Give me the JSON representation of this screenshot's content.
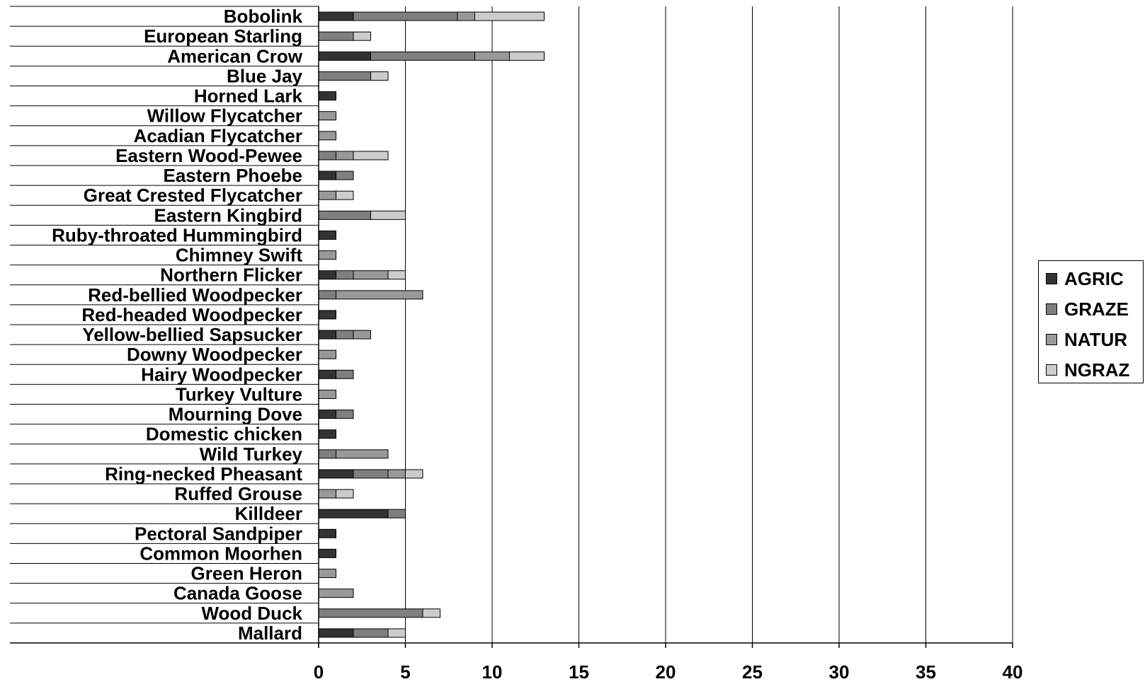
{
  "chart_data": {
    "type": "bar",
    "orientation": "horizontal",
    "stacked": true,
    "categories": [
      "Bobolink",
      "European Starling",
      "American Crow",
      "Blue Jay",
      "Horned Lark",
      "Willow Flycatcher",
      "Acadian Flycatcher",
      "Eastern Wood-Pewee",
      "Eastern Phoebe",
      "Great Crested Flycatcher",
      "Eastern Kingbird",
      "Ruby-throated Hummingbird",
      "Chimney Swift",
      "Northern Flicker",
      "Red-bellied Woodpecker",
      "Red-headed Woodpecker",
      "Yellow-bellied Sapsucker",
      "Downy Woodpecker",
      "Hairy Woodpecker",
      "Turkey Vulture",
      "Mourning Dove",
      "Domestic chicken",
      "Wild Turkey",
      "Ring-necked Pheasant",
      "Ruffed Grouse",
      "Killdeer",
      "Pectoral Sandpiper",
      "Common Moorhen",
      "Green Heron",
      "Canada Goose",
      "Wood Duck",
      "Mallard"
    ],
    "series": [
      {
        "name": "AGRIC",
        "color": "#333333",
        "values": [
          2,
          0,
          3,
          0,
          1,
          0,
          0,
          0,
          1,
          0,
          0,
          1,
          0,
          1,
          0,
          1,
          1,
          0,
          1,
          0,
          1,
          1,
          0,
          2,
          0,
          4,
          1,
          1,
          0,
          0,
          0,
          2
        ]
      },
      {
        "name": "GRAZE",
        "color": "#7f7f7f",
        "values": [
          6,
          2,
          6,
          3,
          0,
          0,
          0,
          1,
          1,
          0,
          3,
          0,
          0,
          1,
          1,
          0,
          1,
          0,
          1,
          0,
          1,
          0,
          1,
          2,
          0,
          1,
          0,
          0,
          0,
          0,
          6,
          2
        ]
      },
      {
        "name": "NATUR",
        "color": "#999999",
        "values": [
          1,
          0,
          2,
          0,
          0,
          1,
          1,
          1,
          0,
          1,
          0,
          0,
          1,
          2,
          5,
          0,
          1,
          1,
          0,
          1,
          0,
          0,
          3,
          1,
          1,
          0,
          0,
          0,
          1,
          2,
          0,
          0
        ]
      },
      {
        "name": "NGRAZ",
        "color": "#cccccc",
        "values": [
          4,
          1,
          2,
          1,
          0,
          0,
          0,
          2,
          0,
          1,
          2,
          0,
          0,
          1,
          0,
          0,
          0,
          0,
          0,
          0,
          0,
          0,
          0,
          1,
          1,
          0,
          0,
          0,
          0,
          0,
          1,
          1
        ]
      }
    ],
    "xlim": [
      0,
      40
    ],
    "xticks": [
      0,
      5,
      10,
      15,
      20,
      25,
      30,
      35,
      40
    ],
    "title": "",
    "xlabel": "",
    "ylabel": "",
    "grid": "vertical",
    "legend_position": "right"
  }
}
